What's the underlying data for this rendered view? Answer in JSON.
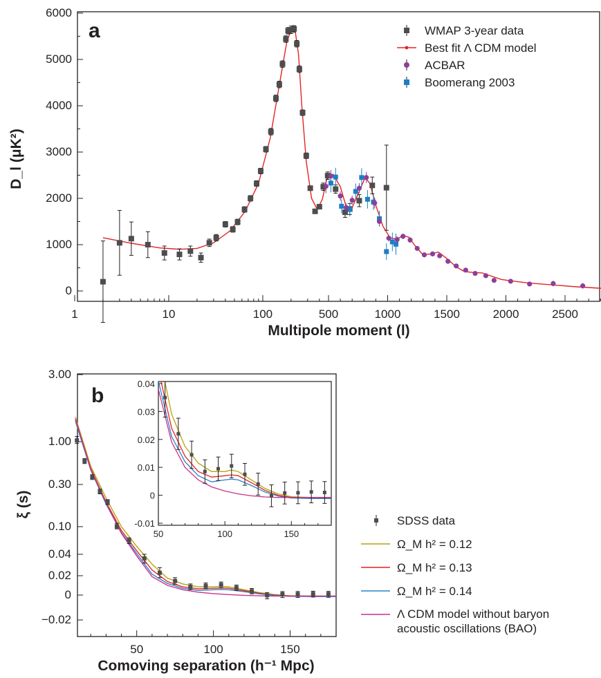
{
  "chart_data": [
    {
      "panel_label": "a",
      "type": "scatter",
      "xlabel": "Multipole moment (l)",
      "ylabel": "D_l (μK²)",
      "x_scale": "log (l ≤ 500), linear (l ≥ 500)",
      "x_tick_labels": [
        "1",
        "10",
        "100",
        "500",
        "1000",
        "1500",
        "2000",
        "2500"
      ],
      "y_tick_labels": [
        "0",
        "1000",
        "2000",
        "3000",
        "4000",
        "5000",
        "6000"
      ],
      "ylim": [
        -150,
        6000
      ],
      "xlim": [
        1,
        2850
      ],
      "grid": false,
      "legend_position": "top-right",
      "legend": [
        "WMAP 3-year data",
        "Best fit Λ CDM model",
        "ACBAR",
        "Boomerang 2003"
      ],
      "series": [
        {
          "name": "WMAP 3-year data",
          "color": "#4d4d4f",
          "marker": "square",
          "points": [
            [
              2,
              200,
              880
            ],
            [
              3,
              1040,
              700
            ],
            [
              4,
              1130,
              360
            ],
            [
              6,
              1000,
              280
            ],
            [
              9,
              820,
              150
            ],
            [
              13,
              790,
              120
            ],
            [
              17,
              860,
              110
            ],
            [
              22,
              720,
              100
            ],
            [
              27,
              1040,
              80
            ],
            [
              32,
              1150,
              70
            ],
            [
              40,
              1440,
              60
            ],
            [
              48,
              1330,
              60
            ],
            [
              54,
              1490,
              60
            ],
            [
              64,
              1760,
              60
            ],
            [
              74,
              2000,
              60
            ],
            [
              86,
              2320,
              60
            ],
            [
              95,
              2590,
              60
            ],
            [
              108,
              3060,
              60
            ],
            [
              122,
              3440,
              70
            ],
            [
              138,
              4160,
              70
            ],
            [
              150,
              4460,
              70
            ],
            [
              162,
              4900,
              70
            ],
            [
              176,
              5440,
              70
            ],
            [
              186,
              5620,
              70
            ],
            [
              200,
              5640,
              80
            ],
            [
              215,
              5660,
              70
            ],
            [
              230,
              5340,
              70
            ],
            [
              245,
              4790,
              70
            ],
            [
              265,
              3850,
              60
            ],
            [
              290,
              2920,
              60
            ],
            [
              320,
              2220,
              50
            ],
            [
              360,
              1720,
              40
            ],
            [
              400,
              1820,
              40
            ],
            [
              440,
              2250,
              80
            ],
            [
              490,
              2490,
              80
            ],
            [
              560,
              2200,
              90
            ],
            [
              640,
              1700,
              110
            ],
            [
              680,
              1770,
              120
            ],
            [
              760,
              1950,
              130
            ],
            [
              870,
              2280,
              180
            ],
            [
              990,
              2230,
              920
            ]
          ]
        },
        {
          "name": "ACBAR",
          "color": "#8c3f99",
          "marker": "circle",
          "points": [
            [
              470,
              2260,
              150
            ],
            [
              520,
              2480,
              130
            ],
            [
              600,
              2050,
              100
            ],
            [
              650,
              1800,
              90
            ],
            [
              700,
              1960,
              100
            ],
            [
              760,
              2220,
              110
            ],
            [
              820,
              2450,
              120
            ],
            [
              890,
              1900,
              120
            ],
            [
              930,
              1500,
              100
            ],
            [
              1010,
              1140,
              70
            ],
            [
              1080,
              1110,
              70
            ],
            [
              1130,
              1180,
              60
            ],
            [
              1190,
              1100,
              60
            ],
            [
              1250,
              920,
              50
            ],
            [
              1310,
              780,
              50
            ],
            [
              1380,
              800,
              50
            ],
            [
              1440,
              760,
              50
            ],
            [
              1510,
              640,
              40
            ],
            [
              1580,
              540,
              40
            ],
            [
              1660,
              450,
              40
            ],
            [
              1740,
              380,
              40
            ],
            [
              1830,
              330,
              40
            ],
            [
              1900,
              230,
              40
            ],
            [
              2040,
              210,
              40
            ],
            [
              2200,
              150,
              40
            ],
            [
              2400,
              160,
              60
            ],
            [
              2650,
              110,
              60
            ]
          ]
        },
        {
          "name": "Boomerang 2003",
          "color": "#1e7ec4",
          "marker": "square",
          "points": [
            [
              520,
              2330,
              200
            ],
            [
              560,
              2460,
              200
            ],
            [
              610,
              1830,
              150
            ],
            [
              680,
              1760,
              150
            ],
            [
              730,
              2150,
              170
            ],
            [
              780,
              2450,
              200
            ],
            [
              830,
              1980,
              200
            ],
            [
              880,
              1920,
              170
            ],
            [
              930,
              1560,
              170
            ],
            [
              990,
              850,
              180
            ],
            [
              1040,
              1060,
              200
            ],
            [
              1070,
              1010,
              230
            ]
          ]
        },
        {
          "name": "Best fit Λ CDM model",
          "color": "#e32322",
          "marker": "line",
          "points": [
            [
              2,
              1150
            ],
            [
              4,
              1030
            ],
            [
              8,
              930
            ],
            [
              13,
              900
            ],
            [
              20,
              920
            ],
            [
              30,
              1040
            ],
            [
              45,
              1300
            ],
            [
              65,
              1720
            ],
            [
              90,
              2320
            ],
            [
              120,
              3300
            ],
            [
              150,
              4450
            ],
            [
              180,
              5380
            ],
            [
              205,
              5700
            ],
            [
              220,
              5650
            ],
            [
              240,
              5100
            ],
            [
              260,
              4000
            ],
            [
              290,
              2800
            ],
            [
              330,
              2000
            ],
            [
              380,
              1760
            ],
            [
              430,
              1980
            ],
            [
              480,
              2420
            ],
            [
              540,
              2520
            ],
            [
              600,
              2250
            ],
            [
              650,
              1820
            ],
            [
              700,
              1800
            ],
            [
              760,
              2150
            ],
            [
              810,
              2450
            ],
            [
              850,
              2320
            ],
            [
              900,
              1850
            ],
            [
              960,
              1400
            ],
            [
              1020,
              1150
            ],
            [
              1080,
              1120
            ],
            [
              1130,
              1200
            ],
            [
              1180,
              1160
            ],
            [
              1240,
              950
            ],
            [
              1300,
              780
            ],
            [
              1360,
              800
            ],
            [
              1430,
              840
            ],
            [
              1500,
              700
            ],
            [
              1580,
              520
            ],
            [
              1650,
              420
            ],
            [
              1720,
              400
            ],
            [
              1800,
              390
            ],
            [
              1880,
              320
            ],
            [
              1960,
              250
            ],
            [
              2040,
              220
            ],
            [
              2200,
              170
            ],
            [
              2400,
              130
            ],
            [
              2600,
              90
            ],
            [
              2850,
              50
            ]
          ]
        }
      ]
    },
    {
      "panel_label": "b",
      "type": "line",
      "xlabel": "Comoving separation (h⁻¹ Mpc)",
      "ylabel": "ξ (s)",
      "y_scale": "mixed (log-like above 0.02, linear below)",
      "x_tick_labels": [
        "50",
        "100",
        "150"
      ],
      "y_tick_labels": [
        "3.00",
        "1.00",
        "0.30",
        "0.10",
        "0.04",
        "0.02",
        "0",
        "−0.02"
      ],
      "xlim": [
        10,
        180
      ],
      "ylim": [
        -0.02,
        3.0
      ],
      "grid": false,
      "legend_position": "right",
      "legend": [
        "SDSS data",
        "Ω_M h² = 0.12",
        "Ω_M h² = 0.13",
        "Ω_M h² = 0.14",
        "Λ CDM model without baryon acoustic oscillations (BAO)"
      ],
      "series": [
        {
          "name": "SDSS data",
          "color": "#4d4d4f",
          "marker": "square",
          "points": [
            [
              11,
              1.02,
              0.07
            ],
            [
              16,
              0.58,
              0.04
            ],
            [
              21,
              0.37,
              0.025
            ],
            [
              26,
              0.25,
              0.015
            ],
            [
              31,
              0.19,
              0.012
            ],
            [
              37,
              0.101,
              0.008
            ],
            [
              45,
              0.063,
              0.006
            ],
            [
              55,
              0.035,
              0.005
            ],
            [
              65,
              0.022,
              0.004
            ],
            [
              75,
              0.0145,
              0.0035
            ],
            [
              85,
              0.0085,
              0.003
            ],
            [
              95,
              0.0095,
              0.003
            ],
            [
              105,
              0.0105,
              0.003
            ],
            [
              115,
              0.0075,
              0.0028
            ],
            [
              125,
              0.004,
              0.0028
            ],
            [
              135,
              -0.0002,
              0.0028
            ],
            [
              145,
              0.0008,
              0.0028
            ],
            [
              155,
              0.0009,
              0.0028
            ],
            [
              165,
              0.0012,
              0.0028
            ],
            [
              175,
              0.001,
              0.0028
            ]
          ]
        },
        {
          "name": "Ω_M h² = 0.12",
          "color": "#b5a40b",
          "points": [
            [
              10,
              1.5
            ],
            [
              20,
              0.5
            ],
            [
              30,
              0.21
            ],
            [
              40,
              0.1
            ],
            [
              50,
              0.052
            ],
            [
              60,
              0.029
            ],
            [
              70,
              0.0175
            ],
            [
              80,
              0.0115
            ],
            [
              90,
              0.0085
            ],
            [
              100,
              0.0085
            ],
            [
              105,
              0.009
            ],
            [
              110,
              0.0085
            ],
            [
              120,
              0.0055
            ],
            [
              130,
              0.0025
            ],
            [
              140,
              0.0005
            ],
            [
              150,
              -0.0005
            ],
            [
              165,
              -0.0008
            ],
            [
              180,
              -0.0008
            ]
          ]
        },
        {
          "name": "Ω_M h² = 0.13",
          "color": "#e32322",
          "points": [
            [
              10,
              1.45
            ],
            [
              20,
              0.47
            ],
            [
              30,
              0.19
            ],
            [
              40,
              0.088
            ],
            [
              50,
              0.045
            ],
            [
              60,
              0.024
            ],
            [
              70,
              0.014
            ],
            [
              80,
              0.0085
            ],
            [
              90,
              0.0065
            ],
            [
              100,
              0.007
            ],
            [
              105,
              0.0073
            ],
            [
              110,
              0.007
            ],
            [
              120,
              0.0045
            ],
            [
              130,
              0.0018
            ],
            [
              140,
              0
            ],
            [
              150,
              -0.0008
            ],
            [
              165,
              -0.001
            ],
            [
              180,
              -0.001
            ]
          ]
        },
        {
          "name": "Ω_M h² = 0.14",
          "color": "#2a83c6",
          "points": [
            [
              10,
              1.4
            ],
            [
              20,
              0.45
            ],
            [
              30,
              0.18
            ],
            [
              40,
              0.082
            ],
            [
              50,
              0.041
            ],
            [
              60,
              0.021
            ],
            [
              70,
              0.012
            ],
            [
              80,
              0.007
            ],
            [
              90,
              0.0048
            ],
            [
              100,
              0.0055
            ],
            [
              105,
              0.0058
            ],
            [
              110,
              0.0055
            ],
            [
              120,
              0.0035
            ],
            [
              130,
              0.0012
            ],
            [
              140,
              -0.0003
            ],
            [
              150,
              -0.001
            ],
            [
              165,
              -0.0012
            ],
            [
              180,
              -0.0012
            ]
          ]
        },
        {
          "name": "Λ CDM model without baryon acoustic oscillations (BAO)",
          "color": "#cc2f8a",
          "points": [
            [
              10,
              1.45
            ],
            [
              20,
              0.46
            ],
            [
              30,
              0.185
            ],
            [
              40,
              0.08
            ],
            [
              50,
              0.038
            ],
            [
              60,
              0.019
            ],
            [
              70,
              0.01
            ],
            [
              80,
              0.0055
            ],
            [
              90,
              0.003
            ],
            [
              100,
              0.0015
            ],
            [
              110,
              0.0005
            ],
            [
              120,
              -0.0002
            ],
            [
              130,
              -0.0006
            ],
            [
              140,
              -0.0008
            ],
            [
              160,
              -0.0008
            ],
            [
              180,
              -0.0008
            ]
          ]
        }
      ],
      "inset": {
        "xlim": [
          50,
          180
        ],
        "ylim": [
          -0.01,
          0.04
        ],
        "x_tick_labels": [
          "50",
          "100",
          "150"
        ],
        "y_tick_labels": [
          "0.04",
          "0.03",
          "0.02",
          "0.01",
          "0",
          "-0.01"
        ]
      }
    }
  ]
}
